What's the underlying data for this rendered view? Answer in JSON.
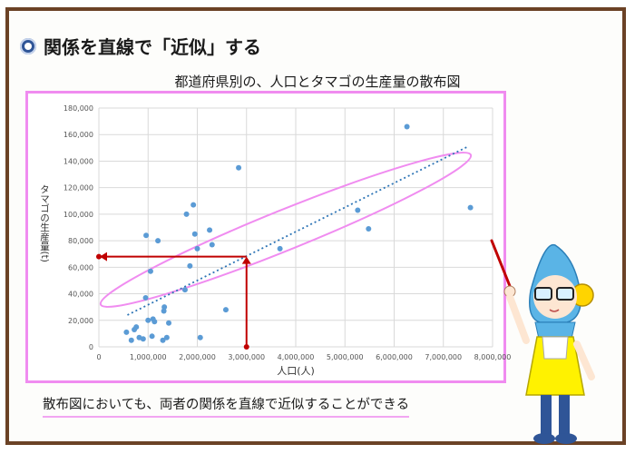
{
  "slide": {
    "title": "関係を直線で「近似」する",
    "caption": "散布図においても、両者の関係を直線で近似することができる",
    "colors": {
      "frame": "#6b4226",
      "highlight": "#f08cf0",
      "points": "#5b9bd5",
      "arrow": "#c00000",
      "trend": "#2e75b6"
    }
  },
  "chart_data": {
    "type": "scatter",
    "title": "都道府県別の、人口とタマゴの生産量の散布図",
    "xlabel": "人口(人)",
    "ylabel": "タマゴの生産量(t)",
    "xlim": [
      0,
      8000000
    ],
    "ylim": [
      0,
      180000
    ],
    "x_ticks": [
      0,
      1000000,
      2000000,
      3000000,
      4000000,
      5000000,
      6000000,
      7000000,
      8000000
    ],
    "y_ticks": [
      0,
      20000,
      40000,
      60000,
      80000,
      100000,
      120000,
      140000,
      160000,
      180000
    ],
    "x_tick_labels": [
      "0",
      "1,000,000",
      "2,000,000",
      "3,000,000",
      "4,000,000",
      "5,000,000",
      "6,000,000",
      "7,000,000",
      "8,000,000"
    ],
    "y_tick_labels": [
      "0",
      "20,000",
      "40,000",
      "60,000",
      "80,000",
      "100,000",
      "120,000",
      "140,000",
      "160,000",
      "180,000"
    ],
    "grid": true,
    "series": [
      {
        "points": [
          [
            560000,
            11000
          ],
          [
            660000,
            5000
          ],
          [
            720000,
            13000
          ],
          [
            760000,
            15000
          ],
          [
            820000,
            7000
          ],
          [
            900000,
            6000
          ],
          [
            950000,
            37000
          ],
          [
            960000,
            84000
          ],
          [
            1000000,
            20000
          ],
          [
            1050000,
            57000
          ],
          [
            1080000,
            8000
          ],
          [
            1100000,
            21000
          ],
          [
            1130000,
            19000
          ],
          [
            1200000,
            80000
          ],
          [
            1300000,
            5000
          ],
          [
            1320000,
            27000
          ],
          [
            1330000,
            30000
          ],
          [
            1380000,
            7000
          ],
          [
            1420000,
            18000
          ],
          [
            1750000,
            43000
          ],
          [
            1780000,
            100000
          ],
          [
            1850000,
            61000
          ],
          [
            1920000,
            107000
          ],
          [
            1950000,
            85000
          ],
          [
            2000000,
            74000
          ],
          [
            2060000,
            7000
          ],
          [
            2250000,
            88000
          ],
          [
            2300000,
            77000
          ],
          [
            2580000,
            28000
          ],
          [
            2840000,
            135000
          ],
          [
            3680000,
            74000
          ],
          [
            5260000,
            103000
          ],
          [
            5480000,
            89000
          ],
          [
            6260000,
            166000
          ],
          [
            7550000,
            105000
          ]
        ]
      }
    ],
    "trendline": {
      "from": [
        580000,
        24000
      ],
      "to": [
        7500000,
        151000
      ]
    },
    "highlight_x": 3000000,
    "highlight_y": 68000
  }
}
